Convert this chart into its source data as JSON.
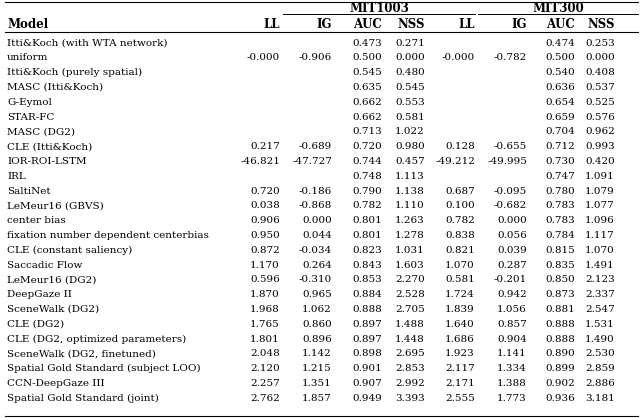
{
  "sub_headers": [
    "Model",
    "LL",
    "IG",
    "AUC",
    "NSS",
    "LL",
    "IG",
    "AUC",
    "NSS"
  ],
  "rows": [
    [
      "Itti&Koch (with WTA network)",
      "",
      "",
      "0.473",
      "0.271",
      "",
      "",
      "0.474",
      "0.253"
    ],
    [
      "uniform",
      "-0.000",
      "-0.906",
      "0.500",
      "0.000",
      "-0.000",
      "-0.782",
      "0.500",
      "0.000"
    ],
    [
      "Itti&Koch (purely spatial)",
      "",
      "",
      "0.545",
      "0.480",
      "",
      "",
      "0.540",
      "0.408"
    ],
    [
      "MASC (Itti&Koch)",
      "",
      "",
      "0.635",
      "0.545",
      "",
      "",
      "0.636",
      "0.537"
    ],
    [
      "G-Eymol",
      "",
      "",
      "0.662",
      "0.553",
      "",
      "",
      "0.654",
      "0.525"
    ],
    [
      "STAR-FC",
      "",
      "",
      "0.662",
      "0.581",
      "",
      "",
      "0.659",
      "0.576"
    ],
    [
      "MASC (DG2)",
      "",
      "",
      "0.713",
      "1.022",
      "",
      "",
      "0.704",
      "0.962"
    ],
    [
      "CLE (Itti&Koch)",
      "0.217",
      "-0.689",
      "0.720",
      "0.980",
      "0.128",
      "-0.655",
      "0.712",
      "0.993"
    ],
    [
      "IOR-ROI-LSTM",
      "-46.821",
      "-47.727",
      "0.744",
      "0.457",
      "-49.212",
      "-49.995",
      "0.730",
      "0.420"
    ],
    [
      "IRL",
      "",
      "",
      "0.748",
      "1.113",
      "",
      "",
      "0.747",
      "1.091"
    ],
    [
      "SaltiNet",
      "0.720",
      "-0.186",
      "0.790",
      "1.138",
      "0.687",
      "-0.095",
      "0.780",
      "1.079"
    ],
    [
      "LeMeur16 (GBVS)",
      "0.038",
      "-0.868",
      "0.782",
      "1.110",
      "0.100",
      "-0.682",
      "0.783",
      "1.077"
    ],
    [
      "center bias",
      "0.906",
      "0.000",
      "0.801",
      "1.263",
      "0.782",
      "0.000",
      "0.783",
      "1.096"
    ],
    [
      "fixation number dependent centerbias",
      "0.950",
      "0.044",
      "0.801",
      "1.278",
      "0.838",
      "0.056",
      "0.784",
      "1.117"
    ],
    [
      "CLE (constant saliency)",
      "0.872",
      "-0.034",
      "0.823",
      "1.031",
      "0.821",
      "0.039",
      "0.815",
      "1.070"
    ],
    [
      "Saccadic Flow",
      "1.170",
      "0.264",
      "0.843",
      "1.603",
      "1.070",
      "0.287",
      "0.835",
      "1.491"
    ],
    [
      "LeMeur16 (DG2)",
      "0.596",
      "-0.310",
      "0.853",
      "2.270",
      "0.581",
      "-0.201",
      "0.850",
      "2.123"
    ],
    [
      "DeepGaze II",
      "1.870",
      "0.965",
      "0.884",
      "2.528",
      "1.724",
      "0.942",
      "0.873",
      "2.337"
    ],
    [
      "SceneWalk (DG2)",
      "1.968",
      "1.062",
      "0.888",
      "2.705",
      "1.839",
      "1.056",
      "0.881",
      "2.547"
    ],
    [
      "CLE (DG2)",
      "1.765",
      "0.860",
      "0.897",
      "1.488",
      "1.640",
      "0.857",
      "0.888",
      "1.531"
    ],
    [
      "CLE (DG2, optimized parameters)",
      "1.801",
      "0.896",
      "0.897",
      "1.448",
      "1.686",
      "0.904",
      "0.888",
      "1.490"
    ],
    [
      "SceneWalk (DG2, finetuned)",
      "2.048",
      "1.142",
      "0.898",
      "2.695",
      "1.923",
      "1.141",
      "0.890",
      "2.530"
    ],
    [
      "Spatial Gold Standard (subject LOO)",
      "2.120",
      "1.215",
      "0.901",
      "2.853",
      "2.117",
      "1.334",
      "0.899",
      "2.859"
    ],
    [
      "CCN-DeepGaze III",
      "2.257",
      "1.351",
      "0.907",
      "2.992",
      "2.171",
      "1.388",
      "0.902",
      "2.886"
    ],
    [
      "Spatial Gold Standard (joint)",
      "2.762",
      "1.857",
      "0.949",
      "3.393",
      "2.555",
      "1.773",
      "0.936",
      "3.181"
    ]
  ],
  "background_color": "#ffffff",
  "font_size": 7.5,
  "header_font_size": 8.5
}
